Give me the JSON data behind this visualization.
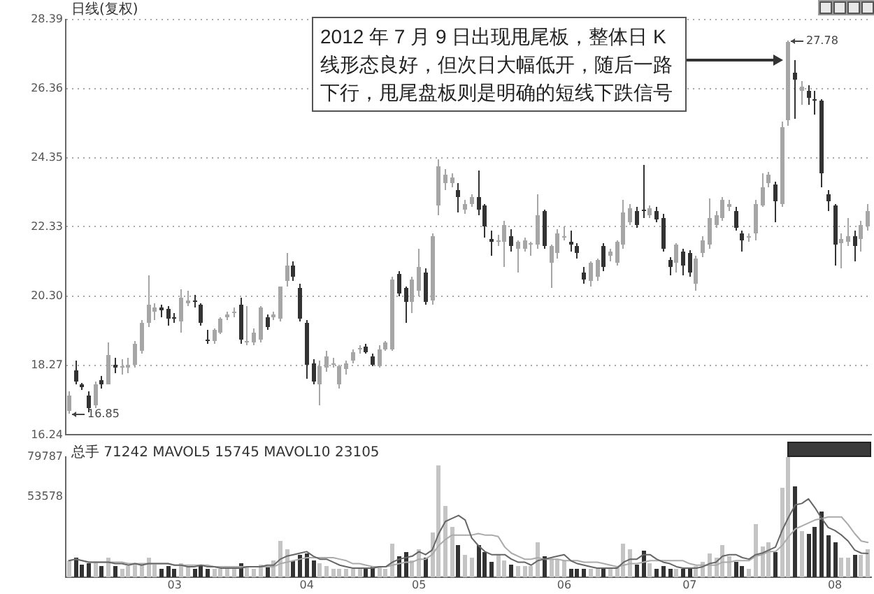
{
  "chart_data": [
    {
      "type": "candlestick",
      "title": "日线(复权)",
      "categories": [
        null,
        null,
        null,
        null,
        null,
        null,
        null,
        null,
        null,
        null,
        null,
        null,
        null,
        null,
        null,
        null,
        "03",
        null,
        null,
        null,
        null,
        null,
        null,
        null,
        null,
        null,
        null,
        null,
        null,
        null,
        null,
        null,
        null,
        null,
        null,
        null,
        "04",
        null,
        null,
        null,
        null,
        null,
        null,
        null,
        null,
        null,
        null,
        null,
        null,
        null,
        null,
        null,
        null,
        "05",
        null,
        null,
        null,
        null,
        null,
        null,
        null,
        null,
        null,
        null,
        null,
        null,
        null,
        null,
        null,
        null,
        null,
        null,
        null,
        null,
        null,
        "06",
        null,
        null,
        null,
        null,
        null,
        null,
        null,
        null,
        null,
        null,
        null,
        null,
        null,
        null,
        null,
        null,
        null,
        null,
        "07",
        null,
        null,
        null,
        null,
        null,
        null,
        null,
        null,
        null,
        null,
        null,
        null,
        null,
        null,
        null,
        null,
        null,
        null,
        null,
        null,
        null,
        "08",
        null,
        null,
        null,
        null,
        null
      ],
      "ohlc": [
        [
          16.95,
          17.5,
          16.85,
          17.41
        ],
        [
          18.14,
          18.43,
          17.7,
          17.82
        ],
        [
          17.72,
          17.78,
          17.55,
          17.62
        ],
        [
          17.41,
          17.5,
          16.9,
          17.01
        ],
        [
          17.09,
          17.82,
          17.01,
          17.7
        ],
        [
          17.86,
          17.95,
          17.6,
          17.74
        ],
        [
          17.74,
          18.95,
          17.7,
          18.59
        ],
        [
          18.3,
          18.5,
          18.05,
          18.2
        ],
        [
          18.2,
          18.45,
          18.0,
          18.26
        ],
        [
          18.22,
          18.5,
          18.05,
          18.28
        ],
        [
          18.31,
          19.0,
          18.2,
          18.91
        ],
        [
          18.71,
          19.6,
          18.6,
          19.52
        ],
        [
          19.52,
          20.9,
          19.4,
          20.05
        ],
        [
          19.85,
          20.1,
          19.6,
          19.98
        ],
        [
          19.95,
          20.05,
          19.7,
          19.9
        ],
        [
          19.92,
          20.0,
          19.45,
          19.64
        ],
        [
          19.7,
          19.8,
          19.5,
          19.65
        ],
        [
          19.56,
          20.5,
          19.24,
          20.25
        ],
        [
          20.1,
          20.45,
          20.0,
          20.18
        ],
        [
          20.14,
          20.35,
          19.95,
          20.12
        ],
        [
          20.05,
          20.1,
          19.45,
          19.52
        ],
        [
          19.0,
          19.3,
          18.9,
          18.98
        ],
        [
          18.98,
          19.35,
          18.9,
          19.3
        ],
        [
          19.24,
          19.7,
          19.2,
          19.64
        ],
        [
          19.7,
          19.85,
          19.6,
          19.75
        ],
        [
          19.8,
          19.95,
          19.7,
          19.85
        ],
        [
          20.05,
          20.25,
          18.91,
          19.03
        ],
        [
          18.95,
          20.0,
          18.85,
          19.0
        ],
        [
          18.95,
          19.35,
          18.85,
          19.24
        ],
        [
          19.03,
          20.0,
          18.95,
          19.97
        ],
        [
          19.68,
          19.75,
          19.3,
          19.4
        ],
        [
          19.7,
          19.85,
          19.6,
          19.75
        ],
        [
          19.64,
          20.6,
          19.55,
          20.57
        ],
        [
          20.73,
          21.57,
          20.6,
          21.18
        ],
        [
          21.18,
          21.3,
          20.75,
          20.86
        ],
        [
          20.53,
          20.65,
          19.55,
          19.64
        ],
        [
          19.52,
          19.6,
          17.9,
          18.31
        ],
        [
          18.35,
          18.45,
          17.7,
          17.82
        ],
        [
          17.74,
          18.4,
          17.09,
          18.27
        ],
        [
          18.2,
          18.7,
          18.1,
          18.55
        ],
        [
          18.3,
          18.5,
          18.2,
          18.31
        ],
        [
          17.74,
          18.3,
          17.6,
          18.25
        ],
        [
          18.15,
          18.4,
          18.0,
          18.35
        ],
        [
          18.43,
          18.75,
          18.35,
          18.67
        ],
        [
          18.74,
          18.85,
          18.6,
          18.76
        ],
        [
          18.83,
          18.9,
          18.6,
          18.67
        ],
        [
          18.55,
          18.6,
          18.25,
          18.31
        ],
        [
          18.27,
          18.85,
          18.2,
          18.75
        ],
        [
          18.75,
          19.0,
          18.7,
          18.95
        ],
        [
          18.75,
          20.85,
          18.7,
          20.78
        ],
        [
          20.94,
          21.05,
          20.3,
          20.37
        ],
        [
          20.53,
          20.6,
          19.52,
          20.13
        ],
        [
          20.13,
          20.85,
          19.8,
          20.78
        ],
        [
          20.45,
          21.7,
          20.3,
          21.14
        ],
        [
          20.98,
          21.1,
          20.05,
          20.13
        ],
        [
          20.17,
          22.15,
          20.05,
          22.07
        ],
        [
          22.96,
          24.3,
          22.68,
          24.1
        ],
        [
          23.6,
          24.0,
          23.4,
          23.85
        ],
        [
          23.6,
          23.9,
          23.5,
          23.75
        ],
        [
          23.4,
          23.6,
          22.76,
          23.2
        ],
        [
          22.83,
          23.1,
          22.7,
          23.0
        ],
        [
          23.0,
          23.3,
          22.9,
          23.2
        ],
        [
          23.2,
          23.98,
          22.68,
          22.85
        ],
        [
          22.96,
          23.0,
          22.0,
          22.35
        ],
        [
          21.99,
          22.2,
          21.5,
          21.87
        ],
        [
          21.9,
          22.1,
          21.75,
          21.95
        ],
        [
          21.87,
          22.5,
          21.14,
          22.4
        ],
        [
          22.07,
          22.25,
          21.6,
          21.75
        ],
        [
          21.7,
          21.95,
          20.98,
          21.87
        ],
        [
          21.7,
          22.0,
          21.6,
          21.95
        ],
        [
          21.82,
          21.9,
          21.5,
          21.85
        ],
        [
          21.79,
          23.3,
          21.7,
          22.68
        ],
        [
          22.8,
          22.85,
          21.7,
          21.75
        ],
        [
          21.26,
          21.8,
          20.53,
          21.75
        ],
        [
          21.55,
          22.25,
          21.4,
          22.15
        ],
        [
          22.0,
          22.35,
          21.95,
          22.07
        ],
        [
          21.9,
          22.2,
          21.6,
          21.8
        ],
        [
          21.75,
          21.85,
          21.4,
          21.55
        ],
        [
          20.98,
          21.15,
          20.65,
          20.78
        ],
        [
          20.73,
          21.3,
          20.6,
          21.26
        ],
        [
          20.86,
          21.4,
          20.75,
          21.35
        ],
        [
          21.75,
          21.85,
          21.05,
          21.14
        ],
        [
          21.5,
          21.7,
          21.3,
          21.62
        ],
        [
          21.26,
          21.95,
          21.2,
          21.87
        ],
        [
          21.79,
          23.13,
          21.7,
          22.76
        ],
        [
          22.48,
          23.0,
          22.4,
          22.88
        ],
        [
          22.8,
          22.9,
          22.3,
          22.4
        ],
        [
          22.82,
          24.14,
          22.6,
          22.78
        ],
        [
          22.68,
          22.95,
          22.6,
          22.88
        ],
        [
          22.8,
          22.9,
          22.45,
          22.56
        ],
        [
          22.6,
          22.7,
          21.6,
          21.67
        ],
        [
          21.35,
          21.45,
          20.9,
          21.14
        ],
        [
          21.26,
          21.85,
          21.0,
          21.79
        ],
        [
          21.6,
          21.7,
          20.9,
          21.18
        ],
        [
          21.55,
          21.65,
          20.85,
          20.98
        ],
        [
          20.65,
          21.5,
          20.45,
          21.4
        ],
        [
          21.55,
          22.05,
          21.45,
          21.95
        ],
        [
          21.79,
          23.17,
          21.7,
          22.6
        ],
        [
          22.4,
          22.8,
          22.3,
          22.68
        ],
        [
          22.6,
          23.2,
          22.5,
          23.1
        ],
        [
          22.9,
          23.1,
          22.8,
          23.0
        ],
        [
          22.8,
          22.9,
          22.2,
          22.28
        ],
        [
          22.15,
          22.2,
          21.6,
          21.95
        ],
        [
          22.0,
          22.15,
          21.9,
          22.07
        ],
        [
          22.15,
          23.1,
          21.95,
          23.0
        ],
        [
          22.96,
          23.9,
          22.9,
          23.49
        ],
        [
          23.6,
          23.95,
          23.5,
          23.85
        ],
        [
          23.57,
          23.65,
          22.48,
          23.09
        ],
        [
          23.0,
          25.4,
          22.9,
          25.25
        ],
        [
          25.43,
          27.78,
          25.3,
          27.74
        ],
        [
          26.85,
          27.2,
          25.5,
          26.65
        ],
        [
          26.3,
          26.6,
          25.9,
          26.42
        ],
        [
          26.32,
          26.45,
          25.9,
          26.12
        ],
        [
          26.05,
          26.3,
          25.6,
          26.0
        ],
        [
          26.0,
          26.05,
          23.5,
          23.9
        ],
        [
          23.3,
          23.4,
          22.8,
          23.09
        ],
        [
          22.96,
          23.0,
          21.18,
          21.79
        ],
        [
          21.85,
          22.15,
          21.1,
          21.99
        ],
        [
          21.9,
          22.6,
          21.75,
          22.07
        ],
        [
          22.07,
          22.2,
          21.3,
          21.75
        ],
        [
          21.99,
          22.5,
          21.6,
          22.4
        ],
        [
          22.35,
          23.0,
          22.2,
          22.8
        ]
      ],
      "colors": [
        "#a6a6a6",
        "#333333",
        "#333333",
        "#333333",
        "#a6a6a6",
        "#333333",
        "#a6a6a6",
        "#333333",
        "#a6a6a6",
        "#a6a6a6",
        "#a6a6a6",
        "#a6a6a6",
        "#a6a6a6",
        "#a6a6a6",
        "#333333",
        "#333333",
        "#333333",
        "#a6a6a6",
        "#a6a6a6",
        "#333333",
        "#333333",
        "#333333",
        "#a6a6a6",
        "#a6a6a6",
        "#a6a6a6",
        "#a6a6a6",
        "#333333",
        "#a6a6a6",
        "#a6a6a6",
        "#a6a6a6",
        "#333333",
        "#a6a6a6",
        "#a6a6a6",
        "#a6a6a6",
        "#333333",
        "#333333",
        "#333333",
        "#333333",
        "#a6a6a6",
        "#a6a6a6",
        "#a6a6a6",
        "#a6a6a6",
        "#a6a6a6",
        "#a6a6a6",
        "#a6a6a6",
        "#333333",
        "#333333",
        "#a6a6a6",
        "#a6a6a6",
        "#a6a6a6",
        "#333333",
        "#333333",
        "#a6a6a6",
        "#a6a6a6",
        "#333333",
        "#a6a6a6",
        "#a6a6a6",
        "#a6a6a6",
        "#a6a6a6",
        "#333333",
        "#a6a6a6",
        "#a6a6a6",
        "#333333",
        "#333333",
        "#333333",
        "#a6a6a6",
        "#a6a6a6",
        "#333333",
        "#a6a6a6",
        "#a6a6a6",
        "#a6a6a6",
        "#a6a6a6",
        "#333333",
        "#a6a6a6",
        "#a6a6a6",
        "#a6a6a6",
        "#333333",
        "#333333",
        "#333333",
        "#a6a6a6",
        "#a6a6a6",
        "#333333",
        "#a6a6a6",
        "#a6a6a6",
        "#a6a6a6",
        "#a6a6a6",
        "#333333",
        "#333333",
        "#a6a6a6",
        "#333333",
        "#333333",
        "#333333",
        "#a6a6a6",
        "#333333",
        "#333333",
        "#a6a6a6",
        "#a6a6a6",
        "#a6a6a6",
        "#a6a6a6",
        "#a6a6a6",
        "#a6a6a6",
        "#333333",
        "#333333",
        "#a6a6a6",
        "#a6a6a6",
        "#a6a6a6",
        "#a6a6a6",
        "#333333",
        "#a6a6a6",
        "#a6a6a6",
        "#333333",
        "#a6a6a6",
        "#333333",
        "#333333",
        "#333333",
        "#333333",
        "#333333",
        "#a6a6a6",
        "#a6a6a6",
        "#333333",
        "#a6a6a6",
        "#a6a6a6"
      ],
      "ylim": [
        16.24,
        28.39
      ],
      "yticks": [
        16.24,
        18.27,
        {
          "value": 20.3,
          "label": "20.30"
        },
        22.33,
        24.35,
        26.36,
        28.39
      ],
      "grid": "y",
      "tick_labels": "y",
      "annotations": [
        "2012 年 7 月 9 日出现甩尾板，整体日 K 线形态良好，但次日大幅低开，随后一路下行，甩尾盘板则是明确的短线下跌信号",
        "27.78",
        "16.85"
      ]
    },
    {
      "type": "bar",
      "title": "总手 71242 MAVOL5 15745 MAVOL10 23105",
      "categories": [
        null,
        null,
        null,
        null,
        null,
        null,
        null,
        null,
        null,
        null,
        null,
        null,
        null,
        null,
        null,
        null,
        "03",
        null,
        null,
        null,
        null,
        null,
        null,
        null,
        null,
        null,
        null,
        null,
        null,
        null,
        null,
        null,
        null,
        null,
        null,
        null,
        "04",
        null,
        null,
        null,
        null,
        null,
        null,
        null,
        null,
        null,
        null,
        null,
        null,
        null,
        null,
        null,
        null,
        "05",
        null,
        null,
        null,
        null,
        null,
        null,
        null,
        null,
        null,
        null,
        null,
        null,
        null,
        null,
        null,
        null,
        null,
        null,
        null,
        null,
        null,
        "06",
        null,
        null,
        null,
        null,
        null,
        null,
        null,
        null,
        null,
        null,
        null,
        null,
        null,
        null,
        null,
        null,
        null,
        null,
        "07",
        null,
        null,
        null,
        null,
        null,
        null,
        null,
        null,
        null,
        null,
        null,
        null,
        null,
        null,
        null,
        null,
        null,
        null,
        null,
        null,
        null,
        "08",
        null,
        null,
        null,
        null,
        null
      ],
      "series": [
        {
          "type": "bar",
          "colors": [
            "#c4c4c4",
            "#333333",
            "#333333",
            "#333333",
            "#c4c4c4",
            "#333333",
            "#c4c4c4",
            "#333333",
            "#c4c4c4",
            "#c4c4c4",
            "#c4c4c4",
            "#c4c4c4",
            "#c4c4c4",
            "#c4c4c4",
            "#333333",
            "#333333",
            "#333333",
            "#c4c4c4",
            "#c4c4c4",
            "#333333",
            "#333333",
            "#333333",
            "#c4c4c4",
            "#c4c4c4",
            "#c4c4c4",
            "#c4c4c4",
            "#333333",
            "#c4c4c4",
            "#c4c4c4",
            "#c4c4c4",
            "#333333",
            "#c4c4c4",
            "#c4c4c4",
            "#c4c4c4",
            "#333333",
            "#333333",
            "#333333",
            "#333333",
            "#c4c4c4",
            "#c4c4c4",
            "#c4c4c4",
            "#c4c4c4",
            "#c4c4c4",
            "#c4c4c4",
            "#c4c4c4",
            "#333333",
            "#333333",
            "#c4c4c4",
            "#c4c4c4",
            "#c4c4c4",
            "#333333",
            "#333333",
            "#c4c4c4",
            "#c4c4c4",
            "#333333",
            "#c4c4c4",
            "#c4c4c4",
            "#c4c4c4",
            "#c4c4c4",
            "#333333",
            "#c4c4c4",
            "#c4c4c4",
            "#333333",
            "#333333",
            "#333333",
            "#c4c4c4",
            "#c4c4c4",
            "#333333",
            "#c4c4c4",
            "#c4c4c4",
            "#c4c4c4",
            "#c4c4c4",
            "#333333",
            "#c4c4c4",
            "#c4c4c4",
            "#c4c4c4",
            "#333333",
            "#333333",
            "#333333",
            "#c4c4c4",
            "#c4c4c4",
            "#333333",
            "#c4c4c4",
            "#c4c4c4",
            "#c4c4c4",
            "#c4c4c4",
            "#333333",
            "#333333",
            "#c4c4c4",
            "#333333",
            "#333333",
            "#333333",
            "#c4c4c4",
            "#333333",
            "#333333",
            "#c4c4c4",
            "#c4c4c4",
            "#c4c4c4",
            "#c4c4c4",
            "#c4c4c4",
            "#c4c4c4",
            "#333333",
            "#333333",
            "#c4c4c4",
            "#c4c4c4",
            "#c4c4c4",
            "#c4c4c4",
            "#333333",
            "#c4c4c4",
            "#c4c4c4",
            "#333333",
            "#c4c4c4",
            "#333333",
            "#333333",
            "#333333",
            "#333333",
            "#333333",
            "#c4c4c4",
            "#c4c4c4",
            "#333333",
            "#c4c4c4",
            "#c4c4c4"
          ],
          "values": [
            11000,
            13000,
            8000,
            9000,
            10000,
            7000,
            13000,
            7000,
            6000,
            7000,
            8000,
            9000,
            13000,
            8000,
            6000,
            7000,
            6000,
            9000,
            7000,
            6000,
            8000,
            6000,
            6000,
            6000,
            6000,
            6000,
            9000,
            7000,
            6000,
            8000,
            7000,
            11000,
            24000,
            19000,
            11000,
            15000,
            16000,
            11000,
            9000,
            7000,
            6000,
            6000,
            6000,
            6000,
            6000,
            6000,
            7000,
            7000,
            6000,
            22000,
            14000,
            17000,
            11000,
            19000,
            13000,
            30000,
            74000,
            47000,
            33000,
            21000,
            15000,
            13000,
            21000,
            17000,
            10000,
            15000,
            11000,
            8000,
            7000,
            7000,
            7000,
            23000,
            14000,
            12000,
            12000,
            11000,
            6000,
            6000,
            6000,
            6000,
            6000,
            6000,
            6000,
            7000,
            22000,
            19000,
            8000,
            18000,
            9000,
            6000,
            7000,
            6000,
            6000,
            6000,
            6000,
            7000,
            10000,
            16000,
            13000,
            21000,
            14000,
            10000,
            7000,
            6000,
            35000,
            20000,
            23000,
            17000,
            59000,
            79787,
            60000,
            31000,
            29000,
            33000,
            44000,
            28000,
            23000,
            13000,
            13000,
            15000,
            15000,
            19000
          ]
        },
        {
          "type": "line",
          "color": "#666666",
          "values": [
            11000,
            12000,
            11000,
            10000,
            10000,
            10000,
            10000,
            9000,
            9000,
            8000,
            9000,
            8000,
            9000,
            9000,
            9000,
            9000,
            8000,
            8000,
            7000,
            7000,
            8000,
            7000,
            7000,
            6000,
            6000,
            6000,
            6000,
            7000,
            7000,
            7000,
            8000,
            8000,
            12000,
            14000,
            15000,
            16000,
            17000,
            14000,
            12000,
            12000,
            10000,
            8000,
            7000,
            6000,
            6000,
            6000,
            6000,
            7000,
            7000,
            10000,
            12000,
            13000,
            14000,
            17000,
            15000,
            18000,
            29000,
            37000,
            39000,
            41000,
            38000,
            26000,
            21000,
            17000,
            15000,
            15000,
            15000,
            12000,
            10000,
            10000,
            8000,
            11000,
            12000,
            13000,
            14000,
            15000,
            11000,
            9000,
            8000,
            7000,
            6000,
            6000,
            6000,
            6000,
            10000,
            12000,
            12000,
            15000,
            15000,
            12000,
            10000,
            9000,
            7000,
            6000,
            6000,
            6000,
            7000,
            9000,
            10000,
            14000,
            15000,
            15000,
            13000,
            12000,
            15000,
            16000,
            18000,
            20000,
            31000,
            40000,
            48000,
            49000,
            52000,
            46000,
            39000,
            33000,
            31000,
            28000,
            24000,
            18000,
            16000,
            15745
          ]
        },
        {
          "type": "line",
          "color": "#aaaaaa",
          "values": [
            11000,
            12000,
            11000,
            10000,
            10000,
            10000,
            10000,
            10000,
            10000,
            9000,
            9000,
            9000,
            9000,
            9000,
            9000,
            9000,
            8000,
            8000,
            8000,
            8000,
            8000,
            8000,
            7000,
            7000,
            7000,
            7000,
            7000,
            7000,
            7000,
            7000,
            7000,
            7000,
            9000,
            10000,
            11000,
            12000,
            13000,
            13000,
            13000,
            13000,
            13000,
            12000,
            11000,
            9000,
            9000,
            8000,
            7000,
            7000,
            7000,
            8000,
            9000,
            10000,
            10000,
            12000,
            12000,
            15000,
            21000,
            25000,
            28000,
            28000,
            28000,
            28000,
            29000,
            28000,
            28000,
            27000,
            20000,
            16000,
            14000,
            12000,
            12000,
            13000,
            12000,
            12000,
            12000,
            11000,
            11000,
            11000,
            10000,
            10000,
            10000,
            9000,
            8000,
            7000,
            8000,
            9000,
            9000,
            10000,
            11000,
            11000,
            11000,
            11000,
            11000,
            11000,
            9000,
            8000,
            8000,
            8000,
            8000,
            10000,
            10000,
            11000,
            11000,
            11000,
            14000,
            15000,
            17000,
            17000,
            21000,
            27000,
            32000,
            34000,
            36000,
            38000,
            39000,
            40000,
            40000,
            40000,
            35000,
            29000,
            24000,
            23105
          ]
        }
      ],
      "ylim": [
        0,
        79787
      ],
      "yticks": [
        79787,
        53578
      ],
      "marker": "none"
    }
  ]
}
